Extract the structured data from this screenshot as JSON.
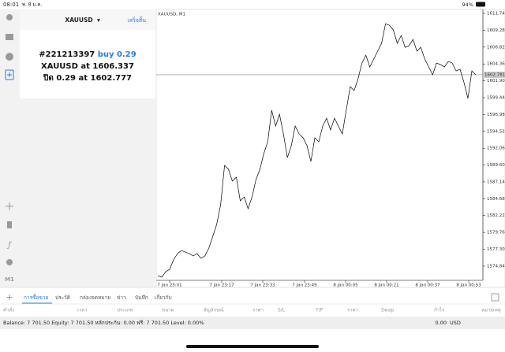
{
  "status_bar": {
    "time": "08:01",
    "date": "พ. 8 ม.ค.",
    "battery": "94%"
  },
  "panel": {
    "symbol": "XAUUSD",
    "done": "เสร็จสิ้น",
    "ticket": "#221213397",
    "side": "buy 0.29",
    "open_line": "XAUUSD at 1606.337",
    "close_line": "ปิด 0.29 at 1602.777"
  },
  "sidebar": {
    "period": "M1"
  },
  "chart": {
    "type": "line",
    "label": "XAUUSD, M1",
    "color": "#000000",
    "values": [
      1573.44,
      1573.21,
      1574.02,
      1574.36,
      1575.74,
      1576.66,
      1577.12,
      1576.89,
      1576.66,
      1576.32,
      1576.66,
      1575.97,
      1576.32,
      1577.47,
      1579.19,
      1580.92,
      1583.79,
      1589.54,
      1588.97,
      1587.24,
      1587.82,
      1584.37,
      1584.94,
      1583.22,
      1584.94,
      1587.47,
      1588.97,
      1591.27,
      1592.99,
      1597.59,
      1595.29,
      1597.02,
      1594.14,
      1590.69,
      1592.42,
      1595.29,
      1594.14,
      1593.57,
      1592.42,
      1590.12,
      1593.57,
      1592.99,
      1595.29,
      1596.44,
      1594.72,
      1596.44,
      1595.29,
      1594.14,
      1597.59,
      1601.04,
      1600.47,
      1602.19,
      1604.49,
      1605.64,
      1603.92,
      1605.07,
      1606.22,
      1607.37,
      1610.24,
      1610.01,
      1609.32,
      1607.37,
      1608.52,
      1606.79,
      1607.02,
      1607.94,
      1606.22,
      1606.79,
      1605.07,
      1603.92,
      1602.77,
      1604.49,
      1604.27,
      1603.92,
      1604.72,
      1604.49,
      1603.34,
      1603.57,
      1601.62,
      1599.32,
      1603.34,
      1602.77
    ],
    "time_labels": [
      "7 Jan 23:01",
      "7 Jan 23:17",
      "7 Jan 23:33",
      "7 Jan 23:49",
      "8 Jan 00:05",
      "8 Jan 00:21",
      "8 Jan 00:37",
      "8 Jan 00:53"
    ],
    "ylim": [
      1572.76,
      1612.32
    ],
    "yticks": [
      {
        "value": 1611.74,
        "label": "1611.740"
      },
      {
        "value": 1609.28,
        "label": "1609.280"
      },
      {
        "value": 1606.82,
        "label": "1606.820"
      },
      {
        "value": 1604.36,
        "label": "1604.360"
      },
      {
        "value": 1601.9,
        "label": "1601.900"
      },
      {
        "value": 1599.44,
        "label": "1599.440"
      },
      {
        "value": 1596.98,
        "label": "1596.980"
      },
      {
        "value": 1594.52,
        "label": "1594.520"
      },
      {
        "value": 1592.06,
        "label": "1592.060"
      },
      {
        "value": 1589.6,
        "label": "1589.600"
      },
      {
        "value": 1587.14,
        "label": "1587.140"
      },
      {
        "value": 1584.68,
        "label": "1584.680"
      },
      {
        "value": 1582.22,
        "label": "1582.220"
      },
      {
        "value": 1579.76,
        "label": "1579.760"
      },
      {
        "value": 1577.3,
        "label": "1577.300"
      },
      {
        "value": 1574.84,
        "label": "1574.840"
      }
    ],
    "current_price": 1602.781
  },
  "tabs": [
    "การซื้อขาย",
    "ประวัติ",
    "กล่องจดหมาย",
    "ข่าว",
    "บันทึก",
    "เกี่ยวกับ"
  ],
  "columns": [
    "คำสั่ง",
    "เวลา",
    "ประเภท",
    "ขนาด",
    "สัญลักษณ์",
    "ราคา",
    "S/L",
    "T/P",
    "ราคา",
    "Swap",
    "กำไร",
    "หมายเหตุ"
  ],
  "balance": {
    "summary": "Balance: 7 701.50 Equity: 7 701.50 หลักประกัน: 0.00 ฟรี: 7 701.50 Level: 0.00%",
    "profit": "0.00",
    "currency": "USD"
  }
}
